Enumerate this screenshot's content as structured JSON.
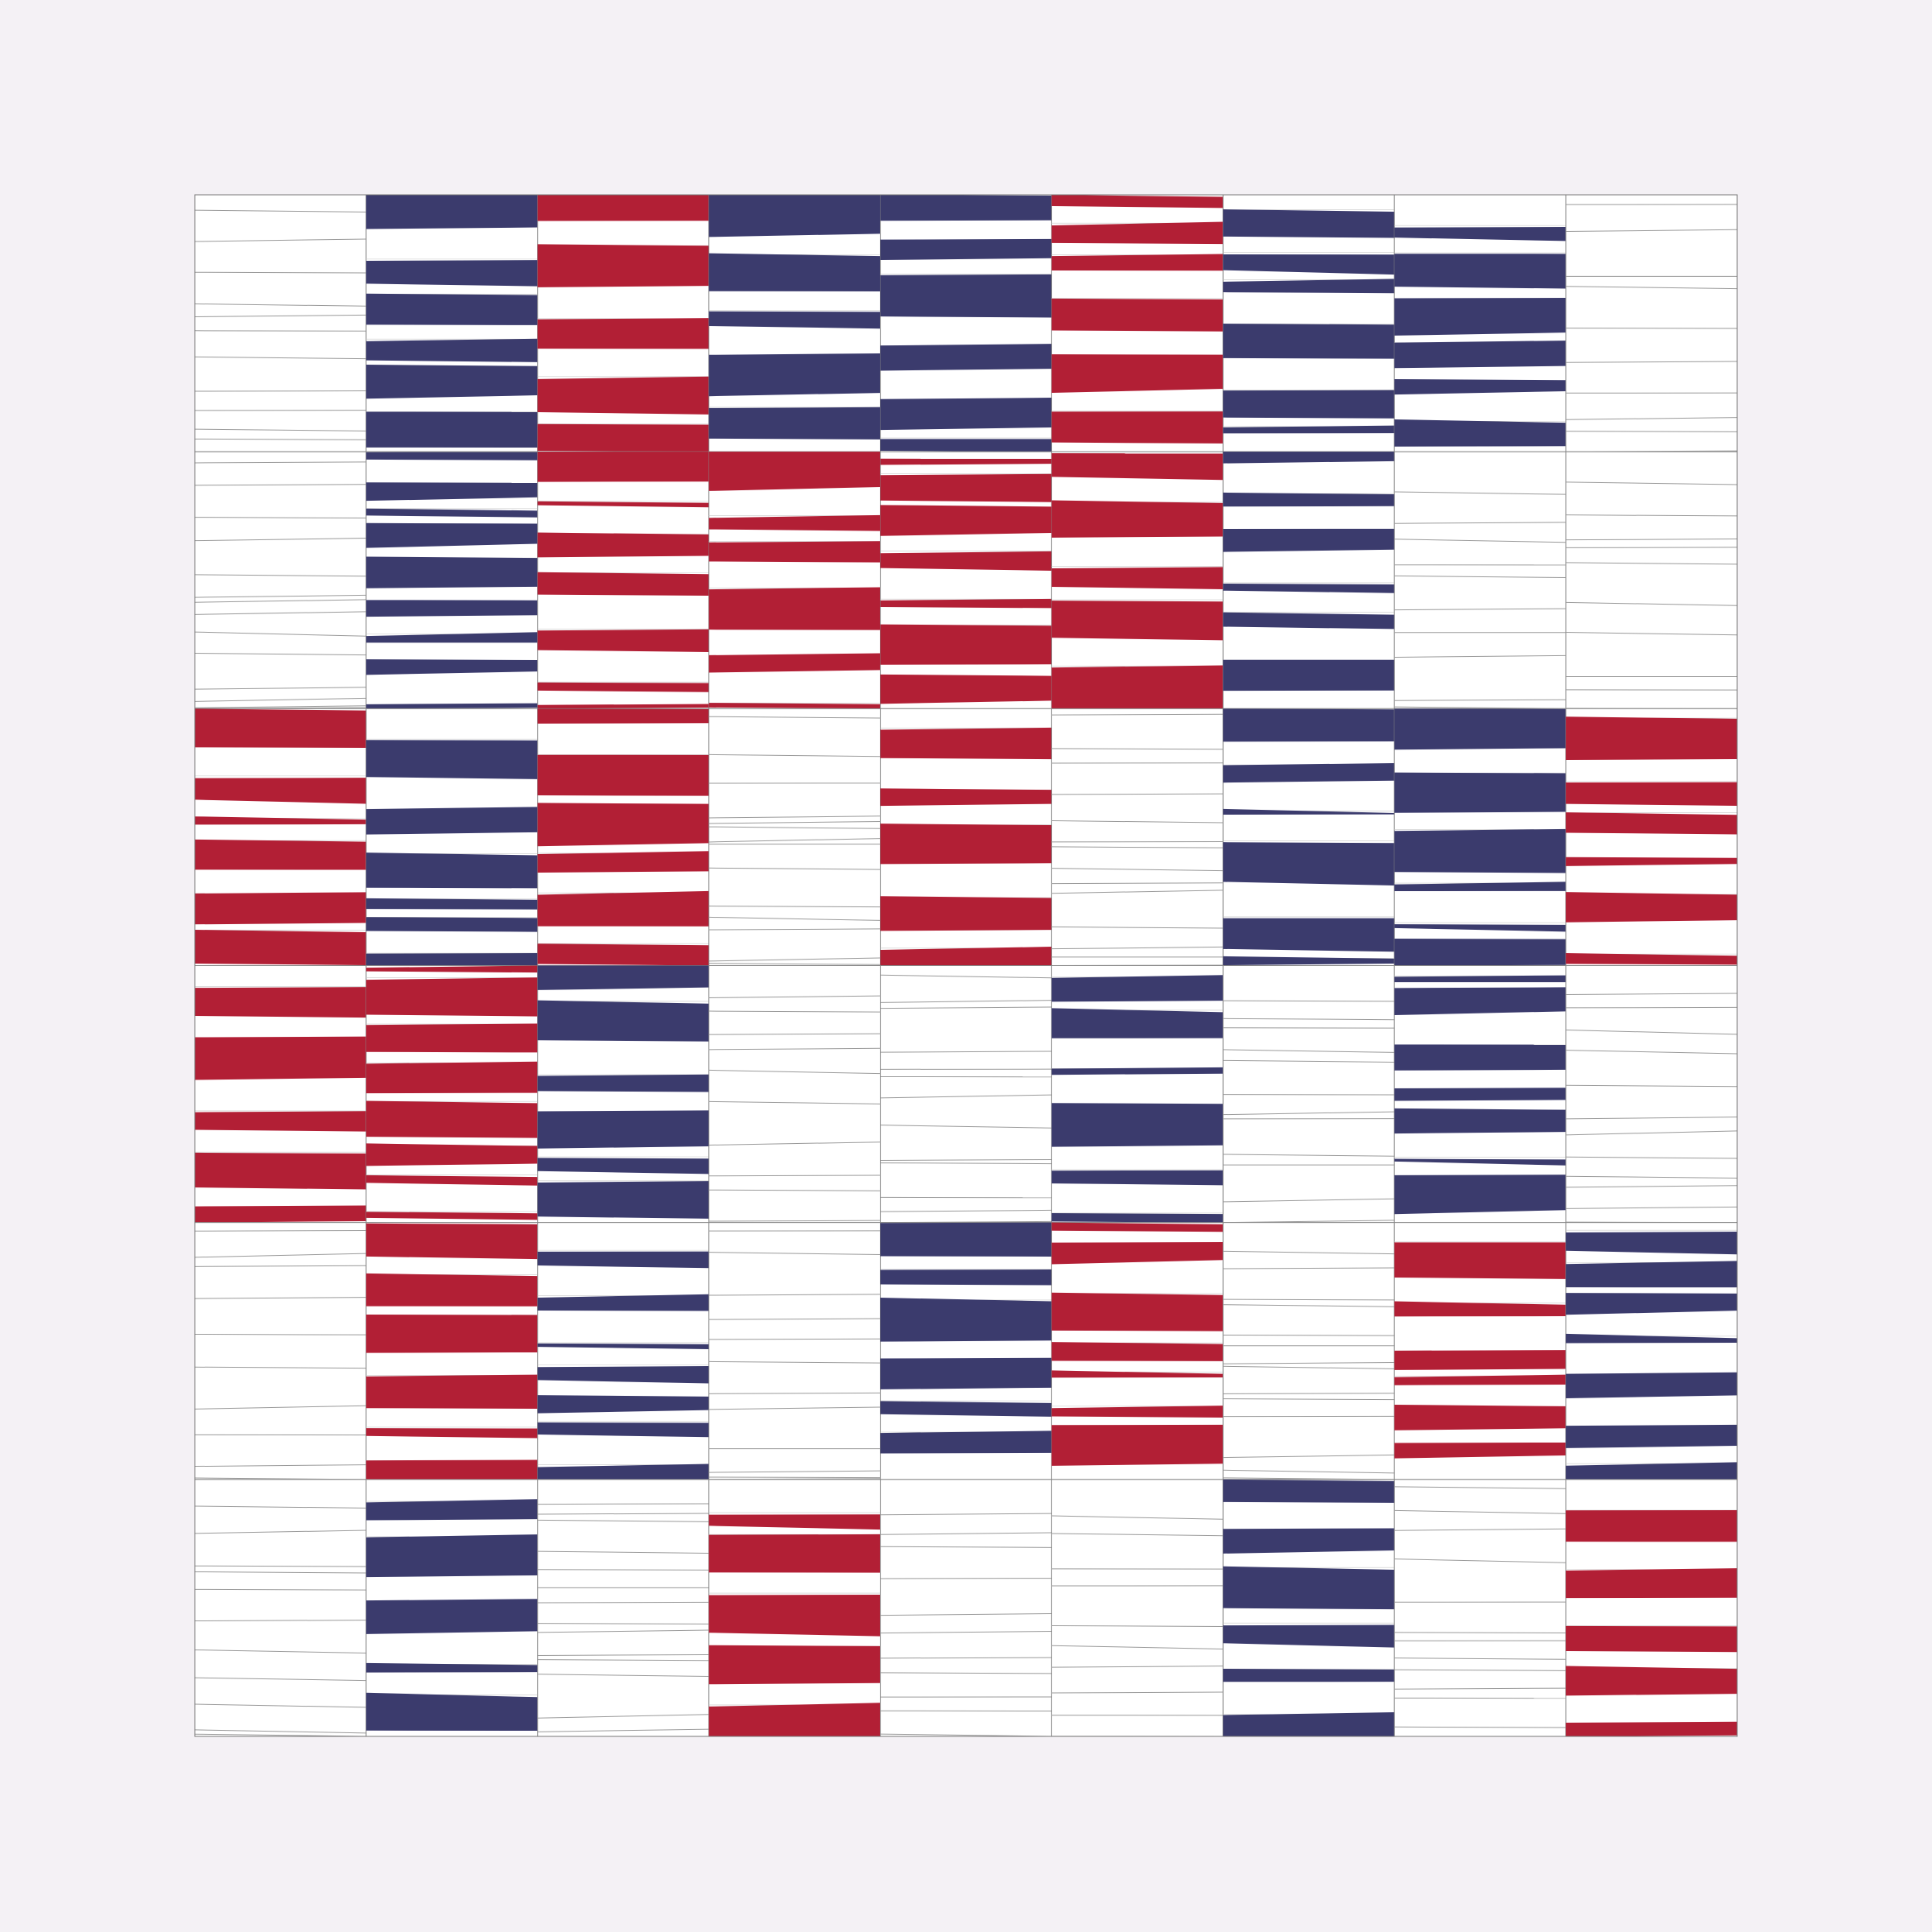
{
  "palette": {
    "r": "#b21f35",
    "b": "#3b3b6d",
    "w": "#ffffff"
  },
  "rows": [
    "wbrbbrbbw",
    "wbrrrrbww",
    "rbrwrwbbr",
    "rrbwwbwbw",
    "wrbwbrwrb",
    "wbwrwwbwr"
  ]
}
